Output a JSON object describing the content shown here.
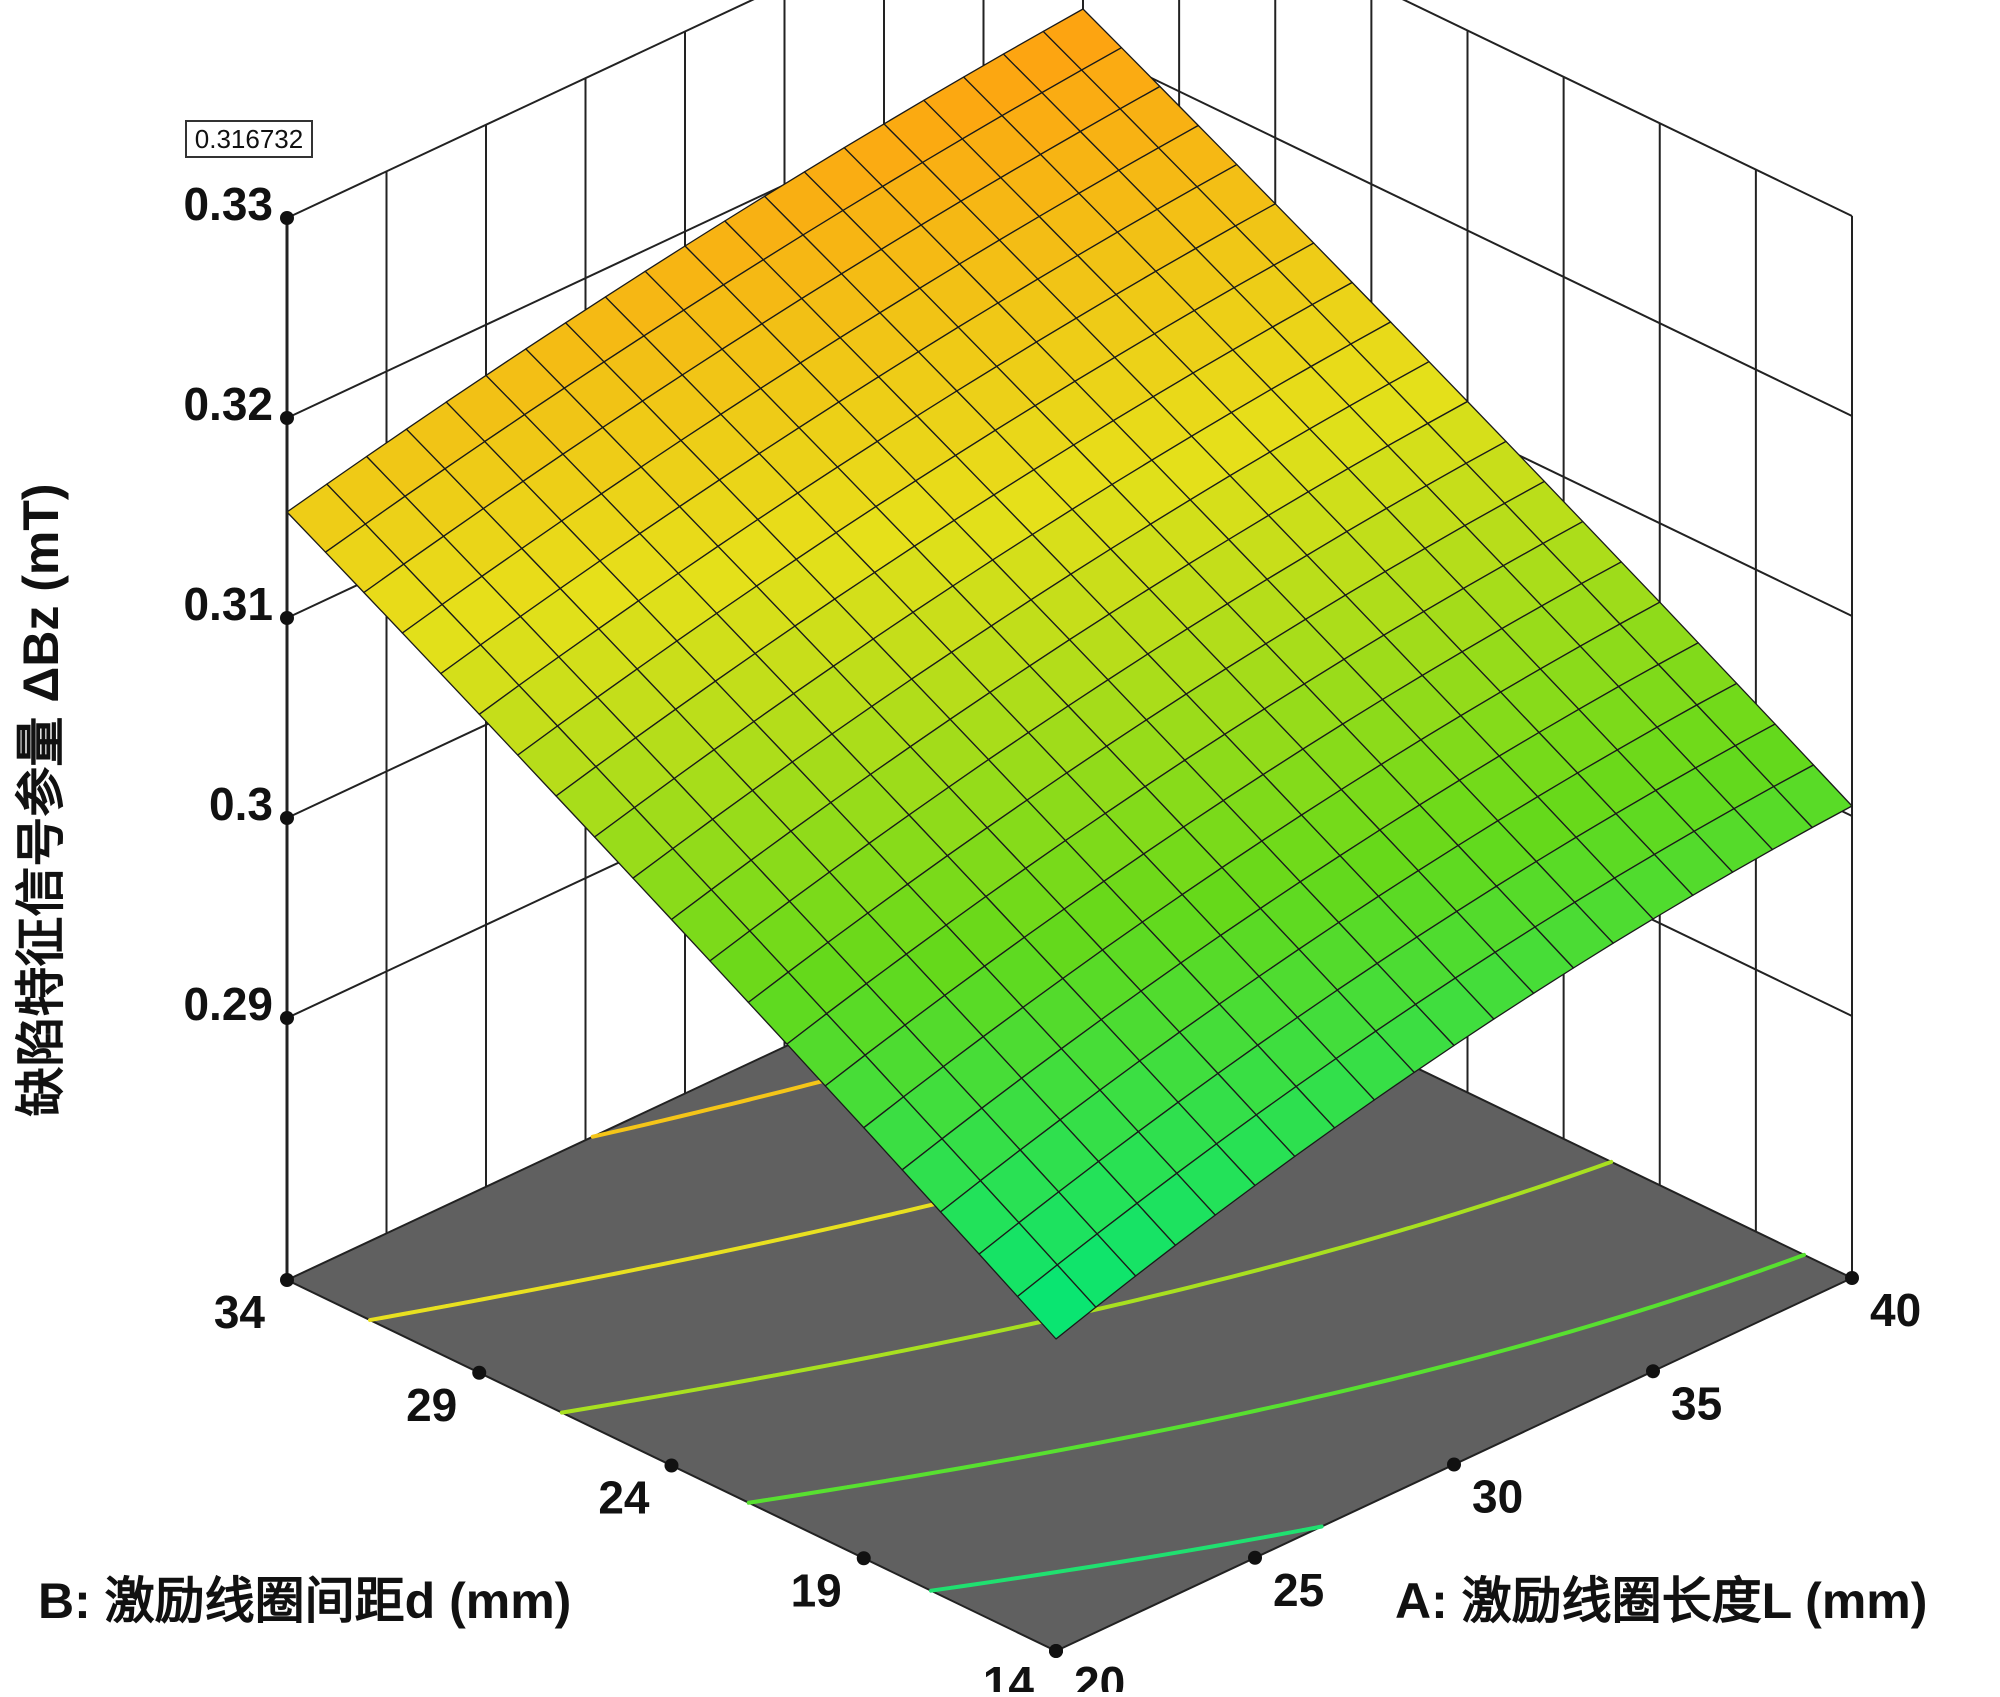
{
  "chart_data": {
    "type": "surface3d",
    "zlabel": "缺陷特征信号参量 ΔBz (mT)",
    "xlabel": "A: 激励线圈长度L (mm)",
    "ylabel": "B: 激励线圈间距d (mm)",
    "x_ticks": [
      "20",
      "25",
      "30",
      "35",
      "40"
    ],
    "y_ticks": [
      "14",
      "19",
      "24",
      "29",
      "34"
    ],
    "z_ticks": [
      "0.29",
      "0.3",
      "0.31",
      "0.32",
      "0.33"
    ],
    "xlim": [
      20,
      40
    ],
    "ylim": [
      14,
      34
    ],
    "zlim": [
      0.29,
      0.33
    ],
    "flag_value": "0.316732",
    "grid": true,
    "surface": {
      "corner_values": {
        "L20_d14": 0.2925,
        "L40_d14": 0.3005,
        "L20_d34": 0.3153,
        "L40_d34": 0.3218
      },
      "colormap": [
        "#00e67a",
        "#66d91a",
        "#e6e01a",
        "#ffa010"
      ]
    },
    "contour_colors": [
      "#f5c518",
      "#e8e020",
      "#a8e020",
      "#58e030",
      "#20e070"
    ]
  }
}
